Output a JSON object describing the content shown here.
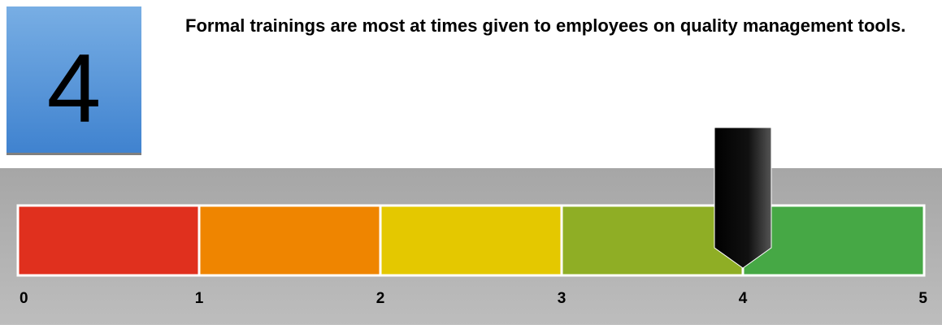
{
  "badge": "4",
  "statement": "Formal trainings are most at times given to employees on quality management tools.",
  "scale": {
    "lim": [
      0,
      5
    ],
    "ticks": [
      0,
      1,
      2,
      3,
      4,
      5
    ],
    "value": 4,
    "segment_colors": [
      "#e0301e",
      "#ef8500",
      "#e4c800",
      "#8fae25",
      "#46a845"
    ]
  }
}
